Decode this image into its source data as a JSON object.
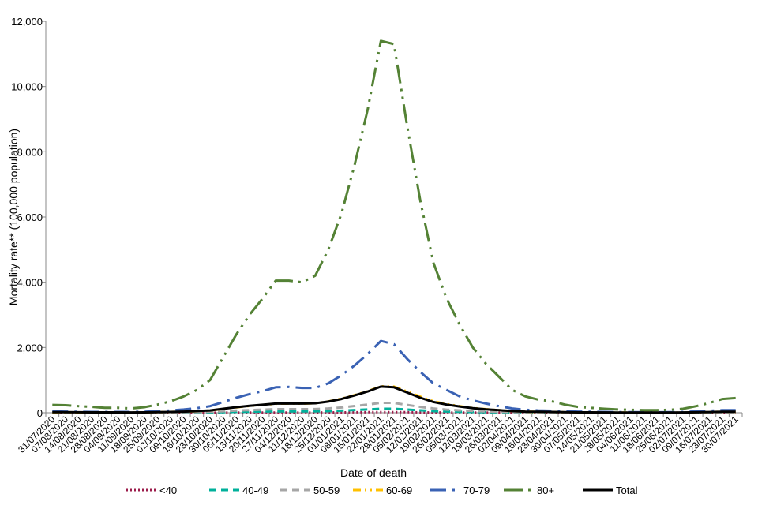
{
  "chart_data": {
    "type": "line",
    "title": "",
    "xlabel": "Date of death",
    "ylabel": "Mortality rate** (100,000 population)",
    "ylim": [
      0,
      12000
    ],
    "yticks": [
      0,
      2000,
      4000,
      6000,
      8000,
      10000,
      12000
    ],
    "ytick_labels": [
      "0",
      "2,000",
      "4,000",
      "6,000",
      "8,000",
      "10,000",
      "12,000"
    ],
    "grid": false,
    "legend_position": "bottom",
    "categories": [
      "31/07/2020",
      "07/08/2020",
      "14/08/2020",
      "21/08/2020",
      "28/08/2020",
      "04/09/2020",
      "11/09/2020",
      "18/09/2020",
      "25/09/2020",
      "02/10/2020",
      "09/10/2020",
      "16/10/2020",
      "23/10/2020",
      "30/10/2020",
      "06/11/2020",
      "13/11/2020",
      "20/11/2020",
      "27/11/2020",
      "04/12/2020",
      "11/12/2020",
      "18/12/2020",
      "25/12/2020",
      "01/01/2021",
      "08/01/2021",
      "15/01/2021",
      "22/01/2021",
      "29/01/2021",
      "05/02/2021",
      "12/02/2021",
      "19/02/2021",
      "26/02/2021",
      "05/03/2021",
      "12/03/2021",
      "19/03/2021",
      "26/03/2021",
      "02/04/2021",
      "09/04/2021",
      "16/04/2021",
      "23/04/2021",
      "30/04/2021",
      "07/05/2021",
      "14/05/2021",
      "21/05/2021",
      "28/05/2021",
      "04/06/2021",
      "11/06/2021",
      "18/06/2021",
      "25/06/2021",
      "02/07/2021",
      "09/07/2021",
      "16/07/2021",
      "23/07/2021",
      "30/07/2021"
    ],
    "series": [
      {
        "name": "<40",
        "color": "#9b1b4a",
        "style": "dotted",
        "values": [
          1,
          1,
          1,
          1,
          1,
          1,
          1,
          1,
          1,
          1,
          2,
          2,
          3,
          4,
          5,
          6,
          7,
          8,
          8,
          8,
          8,
          9,
          11,
          14,
          17,
          20,
          20,
          17,
          13,
          10,
          8,
          6,
          5,
          4,
          3,
          2,
          2,
          1,
          1,
          1,
          1,
          1,
          1,
          1,
          1,
          1,
          1,
          1,
          1,
          1,
          1,
          1,
          1
        ]
      },
      {
        "name": "40-49",
        "color": "#00b09b",
        "style": "dashed",
        "values": [
          3,
          3,
          2,
          2,
          2,
          2,
          2,
          2,
          3,
          4,
          6,
          8,
          11,
          18,
          26,
          32,
          38,
          43,
          44,
          43,
          45,
          52,
          64,
          82,
          100,
          122,
          120,
          96,
          72,
          52,
          38,
          29,
          22,
          16,
          12,
          8,
          6,
          4,
          4,
          3,
          2,
          2,
          2,
          1,
          1,
          1,
          1,
          1,
          2,
          2,
          3,
          4,
          5
        ]
      },
      {
        "name": "50-59",
        "color": "#a6a6a6",
        "style": "dashed",
        "values": [
          7,
          6,
          5,
          5,
          4,
          4,
          4,
          5,
          7,
          10,
          14,
          20,
          28,
          45,
          65,
          80,
          95,
          108,
          110,
          108,
          112,
          130,
          160,
          205,
          250,
          305,
          300,
          240,
          180,
          130,
          95,
          72,
          54,
          40,
          30,
          20,
          14,
          11,
          10,
          7,
          5,
          4,
          4,
          3,
          3,
          3,
          3,
          3,
          4,
          6,
          8,
          11,
          12
        ]
      },
      {
        "name": "60-69",
        "color": "#ffc000",
        "style": "dash-dot-dot",
        "values": [
          15,
          14,
          12,
          11,
          10,
          10,
          9,
          11,
          16,
          23,
          33,
          48,
          68,
          115,
          165,
          205,
          240,
          275,
          280,
          278,
          290,
          345,
          430,
          540,
          660,
          810,
          800,
          650,
          490,
          350,
          265,
          200,
          145,
          108,
          78,
          50,
          35,
          27,
          23,
          17,
          12,
          10,
          8,
          7,
          6,
          5,
          5,
          6,
          8,
          13,
          20,
          28,
          30
        ]
      },
      {
        "name": "70-79",
        "color": "#3a62b4",
        "style": "long-dash-dot",
        "values": [
          40,
          35,
          30,
          25,
          25,
          25,
          25,
          30,
          50,
          70,
          100,
          140,
          200,
          330,
          460,
          570,
          660,
          780,
          790,
          760,
          760,
          900,
          1150,
          1450,
          1800,
          2200,
          2100,
          1650,
          1250,
          900,
          700,
          500,
          380,
          280,
          200,
          130,
          90,
          70,
          60,
          50,
          35,
          30,
          25,
          20,
          18,
          15,
          15,
          18,
          25,
          40,
          60,
          80,
          80
        ]
      },
      {
        "name": "80+",
        "color": "#548235",
        "style": "long-dash-dot-dot",
        "values": [
          240,
          230,
          200,
          180,
          150,
          150,
          130,
          170,
          250,
          350,
          500,
          700,
          1000,
          1700,
          2400,
          3000,
          3500,
          4050,
          4050,
          4000,
          4200,
          5000,
          6100,
          7600,
          9300,
          11400,
          11300,
          8800,
          6500,
          4600,
          3500,
          2700,
          2000,
          1500,
          1100,
          700,
          500,
          400,
          350,
          250,
          180,
          150,
          120,
          100,
          90,
          80,
          80,
          90,
          120,
          200,
          300,
          420,
          450
        ]
      },
      {
        "name": "Total",
        "color": "#000000",
        "style": "solid",
        "values": [
          17,
          16,
          14,
          13,
          11,
          11,
          10,
          12,
          18,
          25,
          35,
          50,
          70,
          120,
          170,
          210,
          245,
          280,
          285,
          280,
          290,
          340,
          420,
          530,
          650,
          800,
          780,
          620,
          460,
          330,
          250,
          190,
          140,
          105,
          77,
          50,
          35,
          28,
          25,
          18,
          13,
          11,
          9,
          8,
          7,
          6,
          6,
          7,
          9,
          14,
          21,
          29,
          32
        ]
      }
    ]
  }
}
